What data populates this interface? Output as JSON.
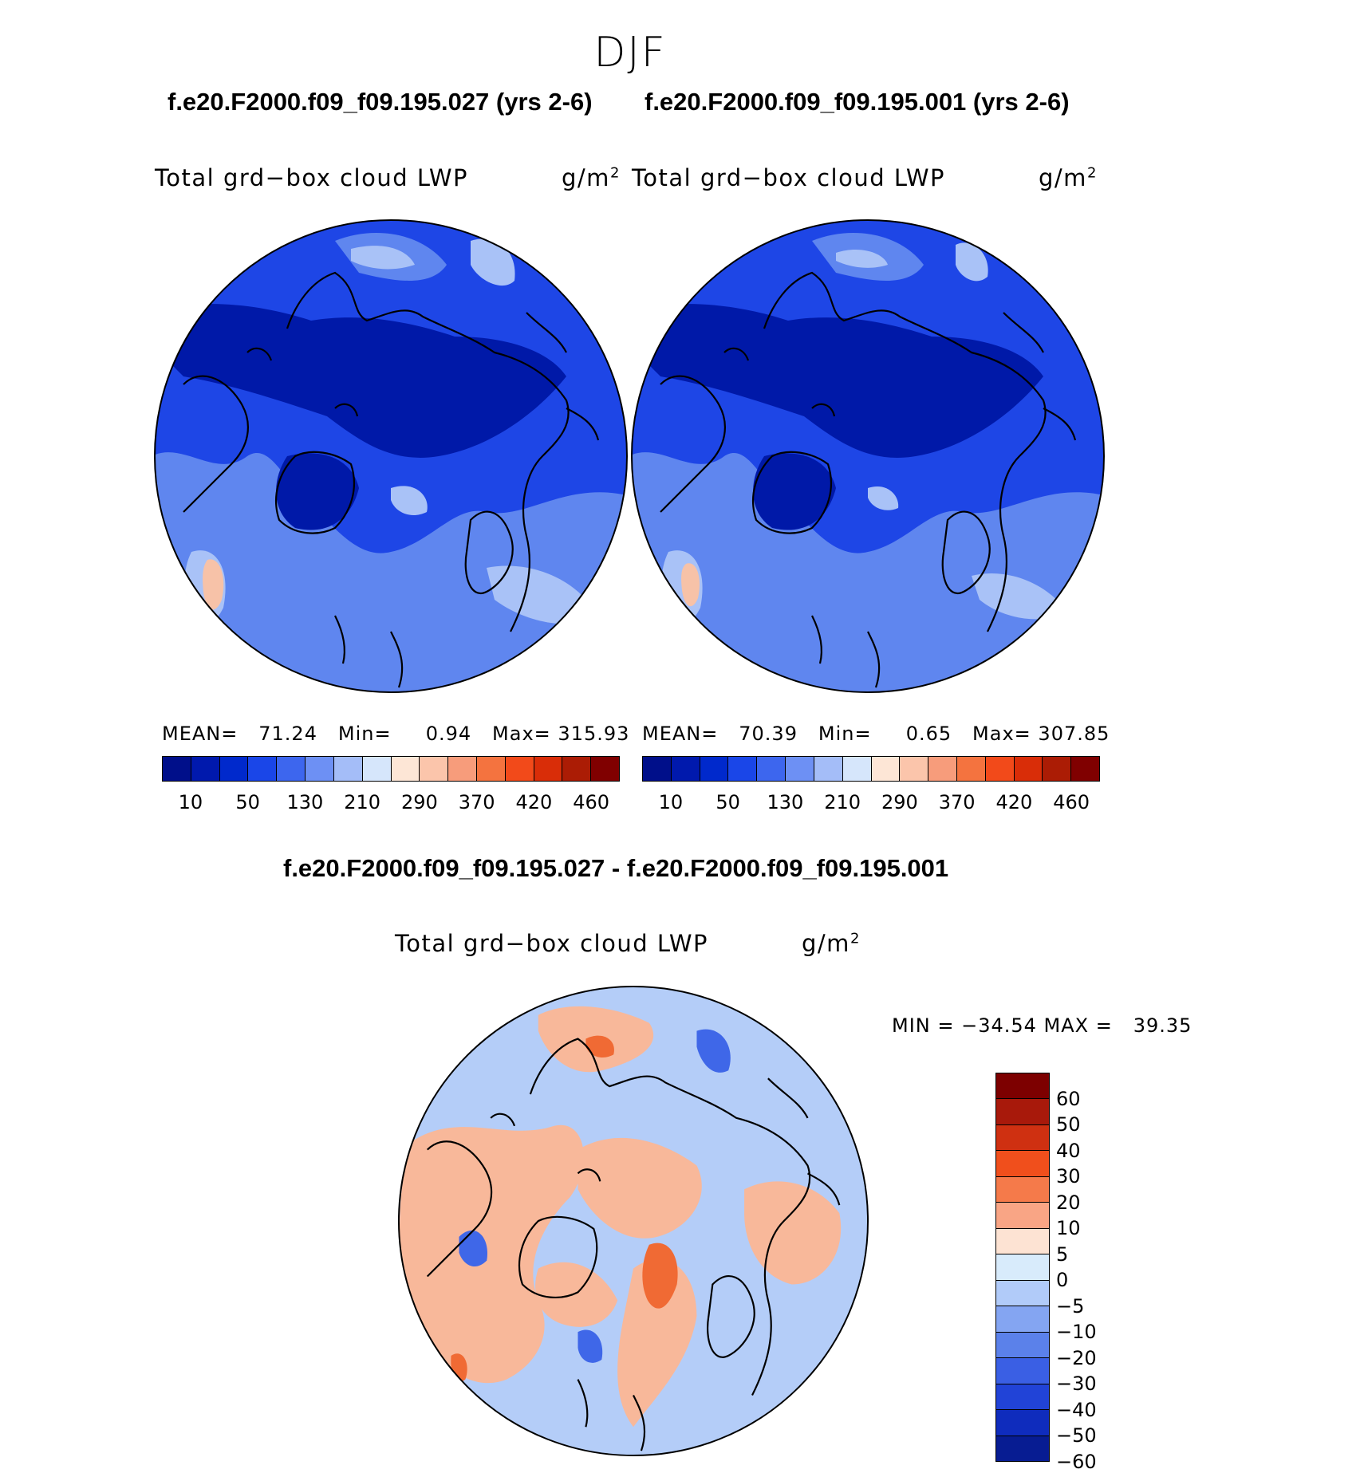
{
  "season": "DJF",
  "top_panels": {
    "left": {
      "case_title": "f.e20.F2000.f09_f09.195.027 (yrs 2-6)",
      "variable": "Total grd−box cloud LWP",
      "units_base": "g/m",
      "units_exp": "2",
      "mean_label": "MEAN=",
      "mean_value": "71.24",
      "min_label": "Min=",
      "min_value": "0.94",
      "max_label": "Max=",
      "max_value": "315.93"
    },
    "right": {
      "case_title": "f.e20.F2000.f09_f09.195.001 (yrs 2-6)",
      "variable": "Total grd−box cloud LWP",
      "units_base": "g/m",
      "units_exp": "2",
      "mean_label": "MEAN=",
      "mean_value": "70.39",
      "min_label": "Min=",
      "min_value": "0.65",
      "max_label": "Max=",
      "max_value": "307.85"
    }
  },
  "top_colorbar": {
    "colors": [
      "#000f8a",
      "#0019ad",
      "#0029cc",
      "#1a46e8",
      "#3d66ee",
      "#6d90f4",
      "#a4bdf8",
      "#d6e6fb",
      "#fde6d6",
      "#fbc5ab",
      "#f79c7b",
      "#f4733f",
      "#f24a1a",
      "#d92d08",
      "#ab1c05",
      "#800000"
    ],
    "tick_labels": [
      "10",
      "50",
      "130",
      "210",
      "290",
      "370",
      "420",
      "460"
    ]
  },
  "diff_panel": {
    "title": "f.e20.F2000.f09_f09.195.027 - f.e20.F2000.f09_f09.195.001",
    "variable": "Total grd−box cloud LWP",
    "units_base": "g/m",
    "units_exp": "2",
    "minmax_text": "MIN = −34.54 MAX =   39.35"
  },
  "diff_colorbar": {
    "colors": [
      "#7d0000",
      "#a8190b",
      "#cf3011",
      "#f04f1c",
      "#f57a4a",
      "#f9a585",
      "#fde3d3",
      "#d8ebfb",
      "#b1cbf9",
      "#84a5f2",
      "#5b81ea",
      "#3a5fe4",
      "#2143d7",
      "#0f2cbd",
      "#071c92"
    ],
    "tick_labels": [
      "60",
      "50",
      "40",
      "30",
      "20",
      "10",
      "5",
      "0",
      "−5",
      "−10",
      "−20",
      "−30",
      "−40",
      "−50",
      "−60"
    ]
  },
  "map_colors": {
    "deep": "#0019a8",
    "mid": "#1e46e6",
    "light": "#5f86ef",
    "pale": "#a9c2f7",
    "warm": "#f7c2a8",
    "diff_pos": "#f8b89a",
    "diff_neg": "#b4cdf8",
    "diff_strong_pos": "#f06a34",
    "diff_strong_neg": "#3f67e8",
    "coast": "#000000"
  }
}
